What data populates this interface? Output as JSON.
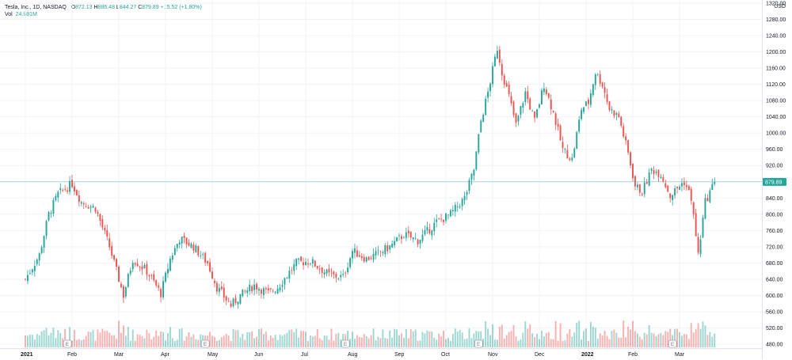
{
  "legend": {
    "symbol": "Tesla, Inc., 1D, NASDAQ",
    "o_label": "O",
    "o_value": "872.13",
    "h_label": "H",
    "h_value": "886.48",
    "l_label": "L",
    "l_value": "844.27",
    "c_label": "C",
    "c_value": "879.89",
    "change": "+15.52 (+1.80%)",
    "vol_label": "Vol",
    "vol_value": "24.881M"
  },
  "currency": "USD",
  "colors": {
    "up": "#26a69a",
    "down": "#ef5350",
    "grid": "#f0f3fa",
    "text": "#131722",
    "price_line": "#26a69a"
  },
  "chart_data": {
    "type": "candlestick",
    "title": "Tesla, Inc., 1D, NASDAQ",
    "last_price": 879.89,
    "ylim": [
      470,
      1300
    ],
    "y_ticks": [
      480,
      520,
      560,
      600,
      640,
      680,
      720,
      760,
      800,
      840,
      880,
      920,
      960,
      1000,
      1040,
      1080,
      1120,
      1160,
      1200,
      1240,
      1280,
      1320
    ],
    "y_tick_labels": [
      "480.00",
      "520.00",
      "560.00",
      "600.00",
      "640.00",
      "680.00",
      "720.00",
      "760.00",
      "800.00",
      "840.00",
      "",
      "920.00",
      "960.00",
      "1000.00",
      "1040.00",
      "1080.00",
      "1120.00",
      "1160.00",
      "1200.00",
      "1240.00",
      "1280.00",
      "1320.00"
    ],
    "x_labels": [
      "2021",
      "Feb",
      "Mar",
      "Apr",
      "May",
      "Jun",
      "Jul",
      "Aug",
      "Sep",
      "Oct",
      "Nov",
      "Dec",
      "2022",
      "Feb",
      "Mar"
    ],
    "x_label_months": [
      0,
      1,
      2,
      3,
      4,
      5,
      6,
      7,
      8,
      9,
      10,
      11,
      12,
      13,
      14
    ],
    "earnings_markers": [
      {
        "label": "E",
        "month": 0.9
      },
      {
        "label": "E",
        "month": 3.85
      },
      {
        "label": "E",
        "month": 6.85
      },
      {
        "label": "E",
        "month": 9.7
      },
      {
        "label": "E",
        "month": 13.85
      }
    ],
    "price_path": [
      [
        0,
        640
      ],
      [
        0.3,
        700
      ],
      [
        0.5,
        800
      ],
      [
        0.7,
        850
      ],
      [
        1.0,
        875
      ],
      [
        1.2,
        830
      ],
      [
        1.5,
        815
      ],
      [
        1.8,
        720
      ],
      [
        2.1,
        600
      ],
      [
        2.3,
        690
      ],
      [
        2.6,
        660
      ],
      [
        2.9,
        605
      ],
      [
        3.1,
        690
      ],
      [
        3.3,
        740
      ],
      [
        3.6,
        720
      ],
      [
        3.9,
        680
      ],
      [
        4.1,
        620
      ],
      [
        4.4,
        575
      ],
      [
        4.6,
        600
      ],
      [
        4.9,
        625
      ],
      [
        5.2,
        605
      ],
      [
        5.4,
        620
      ],
      [
        5.8,
        680
      ],
      [
        6.1,
        685
      ],
      [
        6.5,
        650
      ],
      [
        6.8,
        645
      ],
      [
        7.0,
        710
      ],
      [
        7.3,
        690
      ],
      [
        7.5,
        700
      ],
      [
        7.8,
        720
      ],
      [
        8.1,
        750
      ],
      [
        8.4,
        735
      ],
      [
        8.8,
        780
      ],
      [
        9.1,
        800
      ],
      [
        9.4,
        840
      ],
      [
        9.6,
        910
      ],
      [
        9.75,
        1030
      ],
      [
        9.9,
        1100
      ],
      [
        10.1,
        1210
      ],
      [
        10.2,
        1150
      ],
      [
        10.35,
        1090
      ],
      [
        10.5,
        1020
      ],
      [
        10.7,
        1100
      ],
      [
        10.9,
        1030
      ],
      [
        11.1,
        1120
      ],
      [
        11.3,
        1050
      ],
      [
        11.5,
        960
      ],
      [
        11.7,
        935
      ],
      [
        11.9,
        1060
      ],
      [
        12.05,
        1075
      ],
      [
        12.2,
        1150
      ],
      [
        12.35,
        1120
      ],
      [
        12.5,
        1060
      ],
      [
        12.7,
        1040
      ],
      [
        12.9,
        950
      ],
      [
        13.05,
        870
      ],
      [
        13.2,
        855
      ],
      [
        13.4,
        910
      ],
      [
        13.6,
        900
      ],
      [
        13.8,
        845
      ],
      [
        14.0,
        870
      ],
      [
        14.1,
        880
      ],
      [
        14.25,
        840
      ],
      [
        14.4,
        700
      ],
      [
        14.55,
        830
      ],
      [
        14.75,
        880
      ]
    ],
    "volume_note": "Volume bars shown at bottom, colored by candle direction"
  }
}
